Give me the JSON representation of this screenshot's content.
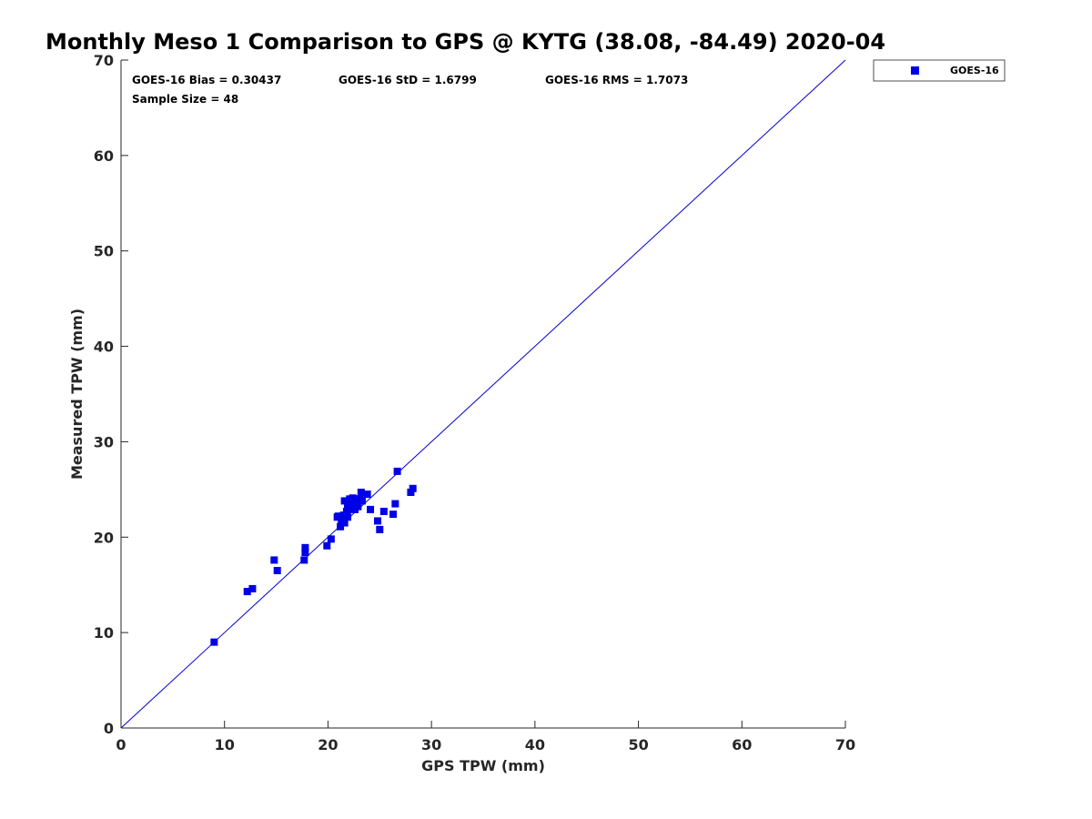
{
  "chart_data": {
    "type": "scatter",
    "title": "Monthly Meso 1 Comparison to GPS @ KYTG (38.08, -84.49) 2020-04",
    "xlabel": "GPS TPW (mm)",
    "ylabel": "Measured TPW (mm)",
    "xlim": [
      0,
      70
    ],
    "ylim": [
      0,
      70
    ],
    "xticks": [
      0,
      10,
      20,
      30,
      40,
      50,
      60,
      70
    ],
    "yticks": [
      0,
      10,
      20,
      30,
      40,
      50,
      60,
      70
    ],
    "grid": false,
    "legend_position": "outside-top-right",
    "reference_line": {
      "from": [
        0,
        0
      ],
      "to": [
        70,
        70
      ],
      "color": "#0000cc"
    },
    "stats": {
      "bias": "GOES-16 Bias = 0.30437",
      "std": "GOES-16 StD = 1.6799",
      "rms": "GOES-16 RMS = 1.7073",
      "sample_size": "Sample Size = 48"
    },
    "series": [
      {
        "name": "GOES-16",
        "color": "#0000e6",
        "marker": "square",
        "points": [
          [
            9.0,
            9.0
          ],
          [
            12.2,
            14.3
          ],
          [
            12.7,
            14.6
          ],
          [
            14.8,
            17.6
          ],
          [
            15.1,
            16.5
          ],
          [
            17.7,
            17.6
          ],
          [
            17.8,
            18.4
          ],
          [
            17.8,
            18.9
          ],
          [
            19.9,
            19.1
          ],
          [
            20.3,
            19.8
          ],
          [
            21.0,
            22.2
          ],
          [
            21.2,
            21.1
          ],
          [
            21.3,
            21.6
          ],
          [
            21.4,
            22.0
          ],
          [
            21.5,
            22.3
          ],
          [
            21.6,
            21.5
          ],
          [
            21.6,
            23.8
          ],
          [
            21.8,
            22.7
          ],
          [
            21.9,
            23.3
          ],
          [
            22.0,
            22.9
          ],
          [
            22.0,
            23.6
          ],
          [
            22.1,
            24.0
          ],
          [
            22.2,
            23.1
          ],
          [
            22.3,
            23.8
          ],
          [
            22.4,
            24.1
          ],
          [
            22.5,
            23.4
          ],
          [
            22.6,
            22.9
          ],
          [
            22.7,
            24.0
          ],
          [
            22.8,
            23.5
          ],
          [
            22.9,
            23.2
          ],
          [
            23.0,
            23.9
          ],
          [
            23.2,
            24.7
          ],
          [
            23.3,
            23.8
          ],
          [
            23.8,
            24.5
          ],
          [
            24.1,
            22.9
          ],
          [
            24.8,
            21.7
          ],
          [
            25.0,
            20.8
          ],
          [
            25.4,
            22.7
          ],
          [
            26.3,
            22.4
          ],
          [
            26.5,
            23.5
          ],
          [
            26.7,
            26.9
          ],
          [
            28.0,
            24.7
          ],
          [
            28.2,
            25.1
          ],
          [
            22.1,
            23.0
          ],
          [
            21.9,
            22.1
          ],
          [
            22.4,
            23.6
          ],
          [
            23.1,
            24.0
          ],
          [
            20.9,
            22.1
          ]
        ]
      }
    ]
  }
}
